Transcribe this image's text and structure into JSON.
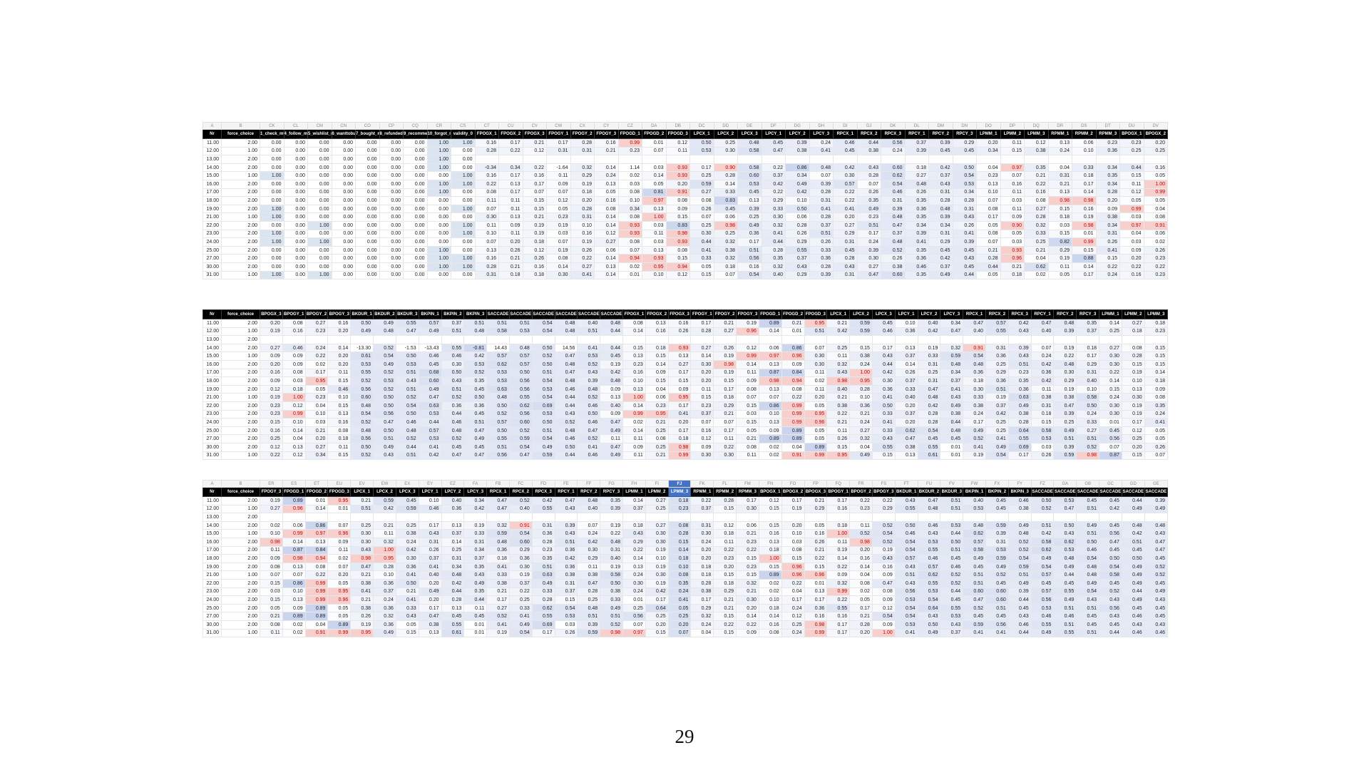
{
  "page_number": "29",
  "colors": {
    "header_bg": "#000000",
    "header_text": "#ffffff",
    "selected_column": "#4472c4",
    "selected_fill": "#d9e2f3",
    "high_value_text": "#c00000",
    "high_value_fill": "#f7d0cd",
    "one_fill": "#dbe5f1",
    "heat_max_fill": "#c9d4ee",
    "page_break_line": "#4f81bd"
  },
  "fixed_headers": [
    "Nr",
    "force_choice"
  ],
  "rows_index": [
    {
      "nr": "11.00",
      "fc": "2.00"
    },
    {
      "nr": "12.00",
      "fc": "1.00"
    },
    {
      "nr": "13.00",
      "fc": "2.00"
    },
    {
      "nr": "14.00",
      "fc": "2.00"
    },
    {
      "nr": "15.00",
      "fc": "1.00"
    },
    {
      "nr": "16.00",
      "fc": "2.00"
    },
    {
      "nr": "17.00",
      "fc": "2.00"
    },
    {
      "nr": "18.00",
      "fc": "2.00"
    },
    {
      "nr": "19.00",
      "fc": "2.00"
    },
    {
      "nr": "21.00",
      "fc": "1.00"
    },
    {
      "nr": "22.00",
      "fc": "2.00"
    },
    {
      "nr": "23.00",
      "fc": "2.00"
    },
    {
      "nr": "24.00",
      "fc": "2.00"
    },
    {
      "nr": "25.00",
      "fc": "2.00"
    },
    {
      "nr": "27.00",
      "fc": "2.00"
    },
    {
      "nr": "30.00",
      "fc": "2.00"
    },
    {
      "nr": "31.00",
      "fc": "1.00"
    }
  ],
  "tables": [
    {
      "name": "spreadsheet-screenshot-1",
      "letters": [
        "A",
        "B",
        "CK",
        "CL",
        "CM",
        "CN",
        "CO",
        "CP",
        "CQ",
        "CR",
        "CS",
        "CT",
        "CU",
        "CV",
        "CW",
        "CX",
        "CY",
        "CZ",
        "DA",
        "DB",
        "DC",
        "DD",
        "DE",
        "DF",
        "DG",
        "DH",
        "DI",
        "DJ",
        "DK",
        "DL",
        "DM",
        "DN",
        "DO",
        "DP",
        "DQ",
        "DR",
        "DS",
        "DT",
        "DU",
        "DV"
      ],
      "headers": [
        "1_check_mt",
        "4_follow_mt",
        "5_wishlist_mt",
        "6_wanttobuy_mt",
        "7_bought_mt",
        "8_refunded_mt",
        "9_recommend_mt",
        "10_forgot_mt",
        "validity_0",
        "FPOGX_1",
        "FPOGX_2",
        "FPOGX_3",
        "FPOGY_1",
        "FPOGY_2",
        "FPOGY_3",
        "FPOGD_1",
        "FPOGD_2",
        "FPOGD_3",
        "LPCX_1",
        "LPCX_2",
        "LPCX_3",
        "LPCY_1",
        "LPCY_2",
        "LPCY_3",
        "RPCX_1",
        "RPCX_2",
        "RPCX_3",
        "RPCY_1",
        "RPCY_2",
        "RPCY_3",
        "LPMM_1",
        "LPMM_2",
        "LPMM_3",
        "RPMM_1",
        "RPMM_2",
        "RPMM_3",
        "BPOGX_1",
        "BPOGX_2"
      ],
      "mt_cols": 9,
      "dashed_break": true,
      "values": [
        "0.00 0.00 0.00 0.00 0.00 0.00 0.00 1.00 1.00 0.16 0.17 0.21 0.17 0.28 0.16 0.99 0.01 0.12 0.50 0.25 0.48 0.45 0.39 0.24 0.46 0.44 0.56 0.37 0.39 0.29 0.20 0.11 0.12 0.13 0.06 0.23 0.23 0.20",
        "0.00 0.00 0.00 0.00 0.00 0.00 0.00 1.00 0.00 0.28 0.22 0.12 0.31 0.31 0.21 0.23 0.07 0.11 0.53 0.30 0.58 0.47 0.38 0.41 0.45 0.38 0.24 0.39 0.45 0.45 0.34 0.15 0.38 0.24 0.10 0.36 0.25 0.25",
        "0.00 0.00 0.00 0.00 0.00 0.00 0.00 1.00 0.00 . . . . . . . . . . . . . . . . . . . . . . . . . . . . .",
        "0.00 0.00 0.00 0.00 0.00 0.00 0.00 1.00 0.00 -0.34 0.34 0.22 -1.64 0.32 0.14 1.14 0.03 0.93 0.17 0.90 0.58 0.22 0.86 0.48 0.42 0.43 0.60 0.18 0.42 0.50 0.04 0.97 0.35 0.04 0.33 0.34 0.44 0.16",
        "1.00 0.00 0.00 0.00 0.00 0.00 0.00 0.00 1.00 0.16 0.17 0.16 0.11 0.29 0.24 0.02 0.14 0.93 0.25 0.28 0.60 0.37 0.34 0.07 0.30 0.28 0.62 0.27 0.37 0.54 0.23 0.07 0.21 0.31 0.18 0.35 0.15 0.05",
        "0.00 0.00 0.00 0.00 0.00 0.00 0.00 1.00 1.00 0.22 0.13 0.17 0.09 0.19 0.13 0.03 0.05 0.20 0.59 0.14 0.53 0.42 0.49 0.39 0.57 0.07 0.54 0.48 0.43 0.53 0.13 0.16 0.22 0.21 0.17 0.34 0.11 1.00",
        "0.00 0.00 0.00 0.00 0.00 0.00 0.00 1.00 0.00 0.08 0.17 0.07 0.07 0.18 0.05 0.08 0.81 0.91 0.27 0.33 0.45 0.22 0.42 0.28 0.22 0.26 0.46 0.26 0.31 0.34 0.10 0.11 0.16 0.13 0.14 0.28 0.12 0.99",
        "0.00 0.00 0.00 0.00 0.00 0.00 0.00 0.00 0.00 0.11 0.11 0.15 0.12 0.20 0.16 0.10 0.97 0.08 0.08 0.83 0.13 0.29 0.10 0.31 0.22 0.35 0.31 0.35 0.28 0.28 0.07 0.03 0.08 0.98 0.98 0.20 0.05 0.05",
        "1.00 0.00 0.00 0.00 0.00 0.00 0.00 0.00 1.00 0.07 0.11 0.15 0.05 0.28 0.08 0.34 0.13 0.09 0.26 0.45 0.39 0.33 0.50 0.41 0.41 0.49 0.39 0.36 0.48 0.31 0.08 0.11 0.27 0.15 0.16 0.09 0.99 0.04",
        "1.00 0.00 0.00 0.00 0.00 0.00 0.00 0.00 0.00 0.30 0.13 0.21 0.23 0.31 0.14 0.08 1.00 0.15 0.07 0.06 0.25 0.30 0.06 0.28 0.20 0.23 0.48 0.35 0.39 0.43 0.17 0.09 0.28 0.18 0.19 0.38 0.03 0.08",
        "0.00 0.00 1.00 0.00 0.00 0.00 0.00 0.00 1.00 0.11 0.09 0.19 0.19 0.10 0.14 0.93 0.03 0.83 0.25 0.98 0.49 0.32 0.28 0.37 0.27 0.51 0.47 0.34 0.34 0.26 0.05 0.90 0.32 0.03 0.98 0.34 0.97 0.91",
        "1.00 0.00 0.00 0.00 0.00 0.00 0.00 0.00 1.00 0.10 0.11 0.19 0.03 0.16 0.12 0.93 0.11 0.98 0.30 0.25 0.36 0.41 0.26 0.51 0.29 0.17 0.37 0.39 0.31 0.41 0.08 0.05 0.33 0.15 0.01 0.31 0.04 0.06",
        "1.00 0.00 1.00 0.00 0.00 0.00 0.00 0.00 0.00 0.07 0.20 0.18 0.07 0.19 0.27 0.08 0.03 0.93 0.44 0.32 0.17 0.44 0.29 0.26 0.31 0.24 0.48 0.41 0.29 0.39 0.07 0.03 0.25 0.82 0.99 0.26 0.03 0.02",
        "0.00 0.00 0.00 0.00 0.00 0.00 0.00 1.00 0.00 0.13 0.26 0.12 0.19 0.26 0.06 0.07 0.13 0.08 0.41 0.38 0.51 0.28 0.55 0.33 0.45 0.39 0.52 0.35 0.45 0.45 0.21 0.93 0.21 0.29 0.15 0.41 0.09 0.26",
        "0.00 0.00 0.00 0.00 0.00 0.00 0.00 1.00 1.00 0.16 0.21 0.26 0.08 0.22 0.14 0.94 0.93 0.15 0.33 0.32 0.56 0.35 0.37 0.36 0.28 0.30 0.26 0.36 0.42 0.43 0.28 0.96 0.04 0.19 0.88 0.15 0.20 0.23",
        "0.00 0.00 0.00 0.00 0.00 0.00 0.00 1.00 1.00 0.28 0.21 0.16 0.14 0.27 0.13 0.02 0.95 0.94 0.05 0.18 0.16 0.32 0.43 0.28 0.43 0.27 0.38 0.46 0.37 0.45 0.44 0.21 0.62 0.11 0.14 0.22 0.22 0.22",
        "1.00 0.00 1.00 0.00 0.00 0.00 0.00 0.00 0.00 0.31 0.18 0.18 0.30 0.41 0.14 0.01 0.10 0.12 0.15 0.07 0.54 0.40 0.29 0.39 0.31 0.47 0.60 0.35 0.49 0.44 0.05 0.18 0.02 0.05 0.17 0.24 0.16 0.23"
      ]
    },
    {
      "name": "spreadsheet-screenshot-2",
      "letters": [],
      "headers": [
        "BPOGX_3",
        "BPOGY_1",
        "BPOGY_2",
        "BPOGY_3",
        "BKDUR_1",
        "BKDUR_2",
        "BKDUR_3",
        "BKPIN_1",
        "BKPIN_2",
        "BKPIN_3",
        "SACCADE",
        "SACCADE",
        "SACCADE",
        "SACCADE",
        "SACCADE",
        "SACCADE",
        "FPOGX_1",
        "FPOGX_2",
        "FPOGX_3",
        "FPOGY_1",
        "FPOGY_2",
        "FPOGY_3",
        "FPOGD_1",
        "FPOGD_2",
        "FPOGD_3",
        "LPCX_1",
        "LPCX_2",
        "LPCX_3",
        "LPCY_1",
        "LPCY_2",
        "LPCY_3",
        "RPCX_1",
        "RPCX_2",
        "RPCX_3",
        "RPCY_1",
        "RPCY_2",
        "RPCY_3",
        "LPMM_1",
        "LPMM_2",
        "LPMM_3"
      ],
      "mt_cols": 0,
      "dashed_break": false,
      "values": [
        "0.20 0.08 0.27 0.16 0.50 0.49 0.55 0.57 0.37 0.51 0.51 0.51 0.54 0.48 0.40 0.48 0.08 0.13 0.16 0.17 0.21 0.19 0.89 0.21 0.95 0.21 0.59 0.45 0.10 0.40 0.34 0.47 0.57 0.42 0.47 0.48 0.35 0.14 0.27 0.18",
        "0.19 0.16 0.23 0.20 0.49 0.48 0.47 0.49 0.51 0.48 0.58 0.53 0.54 0.48 0.51 0.44 0.14 0.16 0.26 0.28 0.27 0.96 0.14 0.01 0.51 0.42 0.59 0.46 0.36 0.42 0.47 0.40 0.55 0.43 0.40 0.39 0.37 0.25 0.18 0.23",
        ". . . . . . . . . . . . . . . . . . . . . . . . . . . . . . . . . . . . . . . .",
        "0.27 0.46 0.24 0.14 -13.30 0.52 -1.53 -13.43 0.55 -0.81 14.43 0.48 0.50 14.56 0.41 0.44 0.15 0.18 0.93 0.27 0.26 0.12 0.06 0.86 0.07 0.25 0.15 0.17 0.13 0.19 0.32 0.91 0.31 0.39 0.07 0.19 0.18 0.27 0.08 0.15",
        "0.09 0.09 0.22 0.20 0.61 0.54 0.50 0.46 0.46 0.42 0.57 0.57 0.52 0.47 0.53 0.45 0.13 0.15 0.13 0.14 0.19 0.99 0.97 0.96 0.30 0.11 0.38 0.43 0.37 0.33 0.59 0.54 0.36 0.43 0.24 0.22 0.17 0.30 0.28 0.15",
        "0.20 0.09 0.02 0.20 0.53 0.49 0.53 0.45 0.30 0.53 0.62 0.57 0.50 0.48 0.52 0.19 0.23 0.14 0.27 0.30 0.98 0.14 0.13 0.09 0.30 0.32 0.24 0.44 0.14 0.31 0.48 0.48 0.25 0.51 0.42 0.48 0.29 0.30 0.15 0.15",
        "0.16 0.08 0.17 0.11 0.55 0.52 0.51 0.68 0.50 0.52 0.53 0.50 0.51 0.47 0.43 0.42 0.16 0.09 0.17 0.20 0.19 0.11 0.87 0.84 0.11 0.43 1.00 0.42 0.26 0.25 0.34 0.36 0.29 0.23 0.36 0.30 0.31 0.22 0.19 0.14",
        "0.09 0.03 0.95 0.15 0.52 0.53 0.43 0.60 0.43 0.35 0.53 0.56 0.54 0.48 0.39 0.48 0.10 0.15 0.15 0.20 0.15 0.09 0.98 0.94 0.02 0.98 0.95 0.30 0.37 0.31 0.37 0.18 0.36 0.35 0.42 0.29 0.40 0.14 0.10 0.18",
        "0.12 0.18 0.05 0.46 0.56 0.52 0.51 0.49 0.51 0.45 0.63 0.56 0.53 0.46 0.48 0.09 0.13 0.04 0.09 0.11 0.17 0.08 0.13 0.08 0.11 0.40 0.28 0.36 0.33 0.47 0.41 0.30 0.51 0.36 0.11 0.19 0.10 0.15 0.13 0.09",
        "0.19 1.00 0.23 0.10 0.60 0.50 0.52 0.47 0.52 0.50 0.48 0.55 0.54 0.44 0.52 0.13 1.00 0.06 0.95 0.15 0.18 0.07 0.07 0.22 0.20 0.21 0.10 0.41 0.40 0.48 0.43 0.33 0.19 0.63 0.38 0.38 0.58 0.24 0.30 0.08",
        "0.23 0.12 0.04 0.15 0.48 0.50 0.54 0.63 0.36 0.36 0.50 0.62 0.69 0.44 0.46 0.40 0.14 0.23 0.17 0.23 0.29 0.15 0.86 0.99 0.05 0.38 0.36 0.50 0.20 0.42 0.49 0.38 0.37 0.49 0.31 0.47 0.50 0.30 0.19 0.35",
        "0.23 0.99 0.10 0.13 0.54 0.56 0.50 0.53 0.44 0.45 0.52 0.56 0.53 0.43 0.50 0.09 0.99 0.95 0.41 0.37 0.21 0.03 0.10 0.99 0.95 0.22 0.21 0.33 0.37 0.28 0.38 0.24 0.42 0.38 0.18 0.39 0.24 0.30 0.19 0.24",
        "0.15 0.10 0.03 0.16 0.52 0.47 0.46 0.44 0.46 0.51 0.57 0.60 0.50 0.52 0.46 0.47 0.02 0.21 0.20 0.07 0.07 0.15 0.13 0.99 0.96 0.21 0.24 0.41 0.20 0.28 0.44 0.17 0.25 0.28 0.15 0.25 0.33 0.01 0.17 0.41",
        "0.16 0.14 0.21 0.08 0.48 0.50 0.48 0.57 0.48 0.47 0.50 0.52 0.51 0.48 0.47 0.49 0.14 0.25 0.17 0.16 0.17 0.05 0.09 0.89 0.05 0.11 0.27 0.33 0.62 0.54 0.48 0.49 0.25 0.64 0.58 0.49 0.27 0.45 0.12 0.05",
        "0.25 0.04 0.20 0.18 0.56 0.51 0.52 0.53 0.52 0.49 0.55 0.59 0.54 0.46 0.52 0.11 0.11 0.08 0.18 0.12 0.11 0.21 0.89 0.89 0.05 0.26 0.32 0.43 0.47 0.45 0.45 0.52 0.41 0.55 0.53 0.51 0.51 0.56 0.25 0.05",
        "0.12 0.13 0.27 0.11 0.50 0.49 0.44 0.41 0.45 0.45 0.51 0.54 0.49 0.50 0.41 0.47 0.09 0.25 0.98 0.09 0.22 0.08 0.02 0.04 0.89 0.15 0.04 0.55 0.38 0.55 0.01 0.41 0.49 0.69 0.03 0.39 0.52 0.07 0.20 0.26",
        "0.22 0.12 0.34 0.15 0.52 0.43 0.51 0.42 0.47 0.47 0.56 0.47 0.59 0.44 0.46 0.49 0.11 0.21 0.99 0.30 0.30 0.11 0.02 0.91 0.99 0.95 0.49 0.15 0.13 0.61 0.01 0.19 0.54 0.17 0.26 0.59 0.98 0.87 0.15 0.07"
      ]
    },
    {
      "name": "spreadsheet-screenshot-3",
      "letters": [
        "A",
        "B",
        "ER",
        "ES",
        "ET",
        "EU",
        "EV",
        "EW",
        "EX",
        "EY",
        "EZ",
        "FA",
        "FB",
        "FC",
        "FD",
        "FE",
        "FF",
        "FG",
        "FH",
        "FI",
        "FJ",
        "FK",
        "FL",
        "FM",
        "FN",
        "FO",
        "FP",
        "FQ",
        "FR",
        "FS",
        "FT",
        "FU",
        "FV",
        "FW",
        "FX",
        "FY",
        "FZ",
        "GA",
        "GB",
        "GC",
        "GD",
        "GE"
      ],
      "headers": [
        "FPOGY_3",
        "FPOGD_1",
        "FPOGD_2",
        "FPOGD_3",
        "LPCX_1",
        "LPCX_2",
        "LPCX_3",
        "LPCY_1",
        "LPCY_2",
        "LPCY_3",
        "RPCX_1",
        "RPCX_2",
        "RPCX_3",
        "RPCY_1",
        "RPCY_2",
        "RPCY_3",
        "LPMM_1",
        "LPMM_2",
        "LPMM_3",
        "RPMM_1",
        "RPMM_2",
        "RPMM_3",
        "BPOGX_1",
        "BPOGX_2",
        "BPOGX_3",
        "BPOGY_1",
        "BPOGY_2",
        "BPOGY_3",
        "BKDUR_1",
        "BKDUR_2",
        "BKDUR_3",
        "BKPIN_1",
        "BKPIN_2",
        "BKPIN_3",
        "SACCADE",
        "SACCADE",
        "SACCADE",
        "SACCADE",
        "SACCADE",
        "SACCADE"
      ],
      "mt_cols": 0,
      "dashed_break": false,
      "selected": 18,
      "values": [
        "0.19 0.89 0.01 0.95 0.21 0.59 0.45 0.10 0.40 0.34 0.47 0.52 0.42 0.47 0.48 0.35 0.14 0.27 0.18 0.22 0.28 0.17 0.12 0.17 0.21 0.17 0.22 0.22 0.43 0.47 0.51 0.40 0.45 0.46 0.50 0.53 0.45 0.45 0.44 0.39",
        "0.27 0.96 0.14 0.01 0.51 0.42 0.59 0.46 0.36 0.42 0.47 0.40 0.55 0.43 0.40 0.39 0.37 0.25 0.23 0.37 0.15 0.30 0.15 0.19 0.29 0.16 0.23 0.29 0.55 0.48 0.51 0.53 0.45 0.38 0.52 0.47 0.51 0.42 0.49 0.49",
        ". . . . . . . . . . . . . . . . . . . . . . . . . . . . . . . . . . . . . . . .",
        "0.02 0.06 0.86 0.07 0.25 0.21 0.25 0.17 0.13 0.19 0.32 0.91 0.31 0.39 0.07 0.19 0.18 0.27 0.08 0.31 0.12 0.06 0.15 0.20 0.05 0.18 0.11 0.52 0.50 0.46 0.53 0.48 0.59 0.49 0.51 0.50 0.49 0.45 0.48 0.48",
        "0.10 0.99 0.97 0.96 0.30 0.11 0.38 0.43 0.37 0.33 0.59 0.54 0.36 0.43 0.24 0.22 0.43 0.30 0.28 0.30 0.18 0.21 0.16 0.10 0.16 1.00 0.52 0.54 0.46 0.43 0.44 0.62 0.39 0.48 0.42 0.43 0.51 0.56 0.42 0.43",
        "0.98 0.14 0.13 0.09 0.30 0.32 0.24 0.31 0.14 0.31 0.48 0.60 0.28 0.51 0.42 0.48 0.29 0.30 0.15 0.24 0.11 0.23 0.13 0.03 0.26 0.11 0.98 0.52 0.54 0.53 0.50 0.57 0.31 0.52 0.58 0.62 0.50 0.47 0.51 0.47",
        "0.11 0.87 0.84 0.11 0.43 1.00 0.42 0.26 0.25 0.34 0.36 0.29 0.23 0.36 0.30 0.31 0.22 0.19 0.14 0.20 0.22 0.22 0.18 0.08 0.21 0.19 0.20 0.19 0.54 0.55 0.51 0.58 0.53 0.52 0.62 0.53 0.46 0.45 0.45 0.47",
        "0.09 0.98 0.94 0.02 0.98 0.95 0.30 0.37 0.31 0.37 0.18 0.36 0.35 0.42 0.29 0.40 0.14 0.10 0.18 0.20 0.23 0.15 1.00 0.15 0.22 0.14 0.16 0.43 0.57 0.46 0.45 0.49 0.59 0.54 0.49 0.48 0.54 0.50 0.50 0.45",
        "0.08 0.13 0.08 0.07 0.47 0.28 0.36 0.41 0.34 0.35 0.41 0.30 0.51 0.36 0.11 0.19 0.13 0.19 0.10 0.18 0.20 0.23 0.15 0.96 0.15 0.22 0.14 0.16 0.43 0.57 0.46 0.45 0.49 0.59 0.54 0.49 0.48 0.54 0.49 0.52",
        "0.07 0.07 0.22 0.20 0.21 0.10 0.41 0.40 0.48 0.43 0.33 0.19 0.63 0.38 0.38 0.58 0.24 0.30 0.08 0.18 0.15 0.15 0.89 0.96 0.96 0.09 0.04 0.09 0.51 0.62 0.52 0.51 0.52 0.51 0.57 0.44 0.48 0.58 0.49 0.52",
        "0.15 0.86 0.99 0.05 0.38 0.36 0.50 0.20 0.42 0.49 0.38 0.37 0.49 0.31 0.47 0.50 0.30 0.19 0.35 0.28 0.18 0.32 0.02 0.22 0.01 0.32 0.08 0.47 0.43 0.55 0.52 0.51 0.45 0.49 0.45 0.45 0.49 0.45 0.49 0.45",
        "0.03 0.10 0.99 0.95 0.41 0.37 0.21 0.49 0.44 0.35 0.21 0.22 0.33 0.37 0.28 0.38 0.24 0.42 0.24 0.38 0.29 0.21 0.02 0.04 0.13 0.99 0.02 0.08 0.56 0.53 0.44 0.60 0.60 0.39 0.57 0.55 0.54 0.52 0.44 0.49",
        "0.15 0.13 0.99 0.96 0.21 0.24 0.41 0.20 0.28 0.44 0.17 0.25 0.28 0.15 0.25 0.33 0.01 0.17 0.41 0.17 0.21 0.30 0.10 0.17 0.17 0.22 0.05 0.09 0.53 0.54 0.45 0.47 0.60 0.44 0.56 0.49 0.43 0.43 0.49 0.43",
        "0.05 0.09 0.89 0.05 0.38 0.36 0.33 0.17 0.13 0.11 0.27 0.33 0.62 0.54 0.48 0.49 0.25 0.64 0.05 0.29 0.21 0.20 0.18 0.24 0.36 0.55 0.17 0.12 0.54 0.64 0.55 0.52 0.51 0.45 0.53 0.51 0.51 0.56 0.45 0.45",
        "0.21 0.89 0.89 0.05 0.26 0.32 0.43 0.47 0.45 0.45 0.52 0.41 0.55 0.53 0.51 0.51 0.56 0.25 0.25 0.32 0.15 0.14 0.14 0.12 0.16 0.16 0.21 0.54 0.54 0.43 0.53 0.45 0.45 0.43 0.46 0.46 0.45 0.43 0.46 0.45",
        "0.08 0.02 0.04 0.89 0.19 0.36 0.05 0.38 0.55 0.01 0.41 0.49 0.69 0.03 0.39 0.52 0.07 0.20 0.20 0.24 0.22 0.22 0.16 0.25 0.98 0.17 0.28 0.09 0.53 0.50 0.43 0.59 0.56 0.46 0.55 0.51 0.45 0.45 0.43 0.43",
        "0.11 0.02 0.91 0.99 0.95 0.49 0.15 0.13 0.61 0.01 0.19 0.54 0.17 0.26 0.59 0.98 0.97 0.15 0.07 0.04 0.15 0.09 0.08 0.24 0.99 0.17 0.20 1.00 0.41 0.49 0.37 0.41 0.41 0.44 0.49 0.55 0.51 0.44 0.46 0.46"
      ]
    }
  ]
}
